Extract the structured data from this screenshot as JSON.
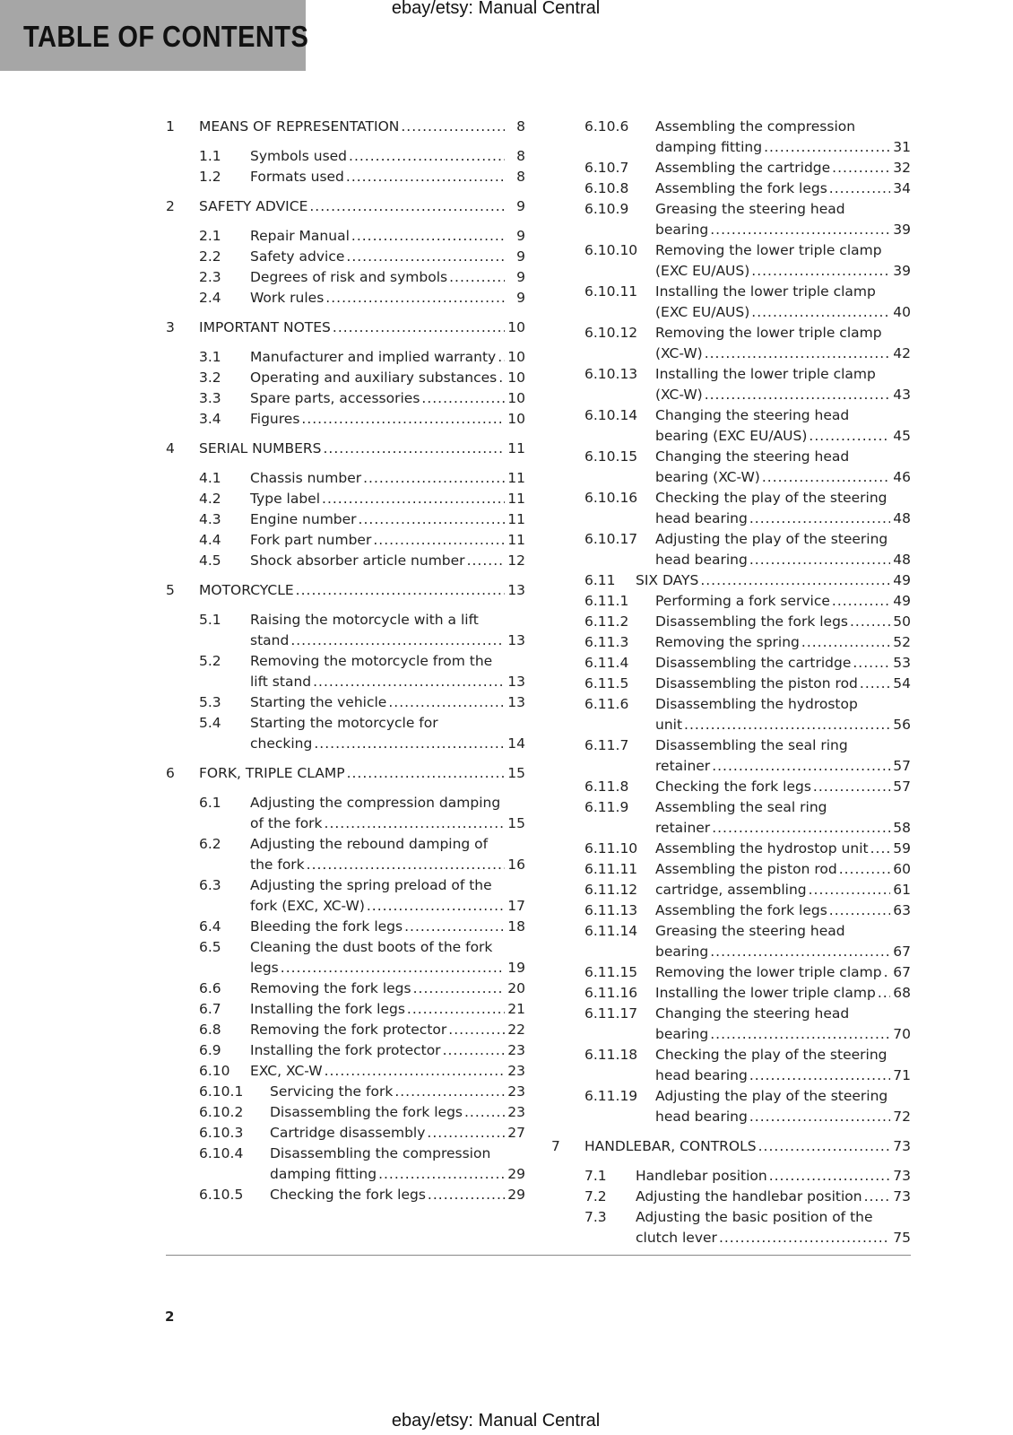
{
  "header": {
    "title": "TABLE OF CONTENTS",
    "watermark_top": "ebay/etsy: Manual Central",
    "watermark_bottom": "ebay/etsy: Manual Central",
    "band_color": "#a6a6a6"
  },
  "footer": {
    "page_number": "2"
  },
  "left": [
    {
      "level": 1,
      "num": "1",
      "lines": [
        "MEANS OF REPRESENTATION"
      ],
      "page": "8"
    },
    {
      "level": 2,
      "num": "1.1",
      "lines": [
        "Symbols used"
      ],
      "page": "8"
    },
    {
      "level": 2,
      "num": "1.2",
      "lines": [
        "Formats used"
      ],
      "page": "8"
    },
    {
      "level": 1,
      "num": "2",
      "lines": [
        "SAFETY ADVICE"
      ],
      "page": "9"
    },
    {
      "level": 2,
      "num": "2.1",
      "lines": [
        "Repair Manual"
      ],
      "page": "9"
    },
    {
      "level": 2,
      "num": "2.2",
      "lines": [
        "Safety advice"
      ],
      "page": "9"
    },
    {
      "level": 2,
      "num": "2.3",
      "lines": [
        "Degrees of risk and symbols"
      ],
      "page": "9"
    },
    {
      "level": 2,
      "num": "2.4",
      "lines": [
        "Work rules"
      ],
      "page": "9"
    },
    {
      "level": 1,
      "num": "3",
      "lines": [
        "IMPORTANT NOTES"
      ],
      "page": "10"
    },
    {
      "level": 2,
      "num": "3.1",
      "lines": [
        "Manufacturer and implied warranty"
      ],
      "page": "10"
    },
    {
      "level": 2,
      "num": "3.2",
      "lines": [
        "Operating and auxiliary substances"
      ],
      "page": "10"
    },
    {
      "level": 2,
      "num": "3.3",
      "lines": [
        "Spare parts, accessories"
      ],
      "page": "10"
    },
    {
      "level": 2,
      "num": "3.4",
      "lines": [
        "Figures"
      ],
      "page": "10"
    },
    {
      "level": 1,
      "num": "4",
      "lines": [
        "SERIAL NUMBERS"
      ],
      "page": "11"
    },
    {
      "level": 2,
      "num": "4.1",
      "lines": [
        "Chassis number"
      ],
      "page": "11"
    },
    {
      "level": 2,
      "num": "4.2",
      "lines": [
        "Type label"
      ],
      "page": "11"
    },
    {
      "level": 2,
      "num": "4.3",
      "lines": [
        "Engine number"
      ],
      "page": "11"
    },
    {
      "level": 2,
      "num": "4.4",
      "lines": [
        "Fork part number"
      ],
      "page": "11"
    },
    {
      "level": 2,
      "num": "4.5",
      "lines": [
        "Shock absorber article number"
      ],
      "page": "12"
    },
    {
      "level": 1,
      "num": "5",
      "lines": [
        "MOTORCYCLE"
      ],
      "page": "13"
    },
    {
      "level": 2,
      "num": "5.1",
      "lines": [
        "Raising the motorcycle with a lift",
        "stand"
      ],
      "page": "13"
    },
    {
      "level": 2,
      "num": "5.2",
      "lines": [
        "Removing the motorcycle from the",
        "lift stand"
      ],
      "page": "13"
    },
    {
      "level": 2,
      "num": "5.3",
      "lines": [
        "Starting the vehicle"
      ],
      "page": "13"
    },
    {
      "level": 2,
      "num": "5.4",
      "lines": [
        "Starting the motorcycle for",
        "checking"
      ],
      "page": "14"
    },
    {
      "level": 1,
      "num": "6",
      "lines": [
        "FORK, TRIPLE CLAMP"
      ],
      "page": "15"
    },
    {
      "level": 2,
      "num": "6.1",
      "lines": [
        "Adjusting the compression damping",
        "of the fork"
      ],
      "page": "15"
    },
    {
      "level": 2,
      "num": "6.2",
      "lines": [
        "Adjusting the rebound damping of",
        "the fork"
      ],
      "page": "16"
    },
    {
      "level": 2,
      "num": "6.3",
      "lines": [
        "Adjusting the spring preload of the",
        "fork (EXC, XC-W)"
      ],
      "page": "17"
    },
    {
      "level": 2,
      "num": "6.4",
      "lines": [
        "Bleeding the fork legs"
      ],
      "page": "18"
    },
    {
      "level": 2,
      "num": "6.5",
      "lines": [
        "Cleaning the dust boots of the fork",
        "legs"
      ],
      "page": "19"
    },
    {
      "level": 2,
      "num": "6.6",
      "lines": [
        "Removing the fork legs"
      ],
      "page": "20"
    },
    {
      "level": 2,
      "num": "6.7",
      "lines": [
        "Installing the fork legs"
      ],
      "page": "21"
    },
    {
      "level": 2,
      "num": "6.8",
      "lines": [
        "Removing the fork protector"
      ],
      "page": "22"
    },
    {
      "level": 2,
      "num": "6.9",
      "lines": [
        "Installing the fork protector"
      ],
      "page": "23"
    },
    {
      "level": 2,
      "num": "6.10",
      "lines": [
        "EXC, XC-W"
      ],
      "page": "23"
    },
    {
      "level": 3,
      "num": "6.10.1",
      "lines": [
        "Servicing the fork"
      ],
      "page": "23"
    },
    {
      "level": 3,
      "num": "6.10.2",
      "lines": [
        "Disassembling the fork legs"
      ],
      "page": "23"
    },
    {
      "level": 3,
      "num": "6.10.3",
      "lines": [
        "Cartridge disassembly"
      ],
      "page": "27"
    },
    {
      "level": 3,
      "num": "6.10.4",
      "lines": [
        "Disassembling the compression",
        "damping fitting"
      ],
      "page": "29"
    },
    {
      "level": 3,
      "num": "6.10.5",
      "lines": [
        "Checking the fork legs"
      ],
      "page": "29"
    }
  ],
  "right": [
    {
      "level": 3,
      "num": "6.10.6",
      "lines": [
        "Assembling the compression",
        "damping fitting"
      ],
      "page": "31"
    },
    {
      "level": 3,
      "num": "6.10.7",
      "lines": [
        "Assembling the cartridge"
      ],
      "page": "32"
    },
    {
      "level": 3,
      "num": "6.10.8",
      "lines": [
        "Assembling the fork legs"
      ],
      "page": "34"
    },
    {
      "level": 3,
      "num": "6.10.9",
      "lines": [
        "Greasing the steering head",
        "bearing"
      ],
      "page": "39"
    },
    {
      "level": 3,
      "num": "6.10.10",
      "lines": [
        "Removing the lower triple clamp",
        "(EXC EU/AUS)"
      ],
      "page": "39"
    },
    {
      "level": 3,
      "num": "6.10.11",
      "lines": [
        "Installing the lower triple clamp",
        "(EXC EU/AUS)"
      ],
      "page": "40"
    },
    {
      "level": 3,
      "num": "6.10.12",
      "lines": [
        "Removing the lower triple clamp",
        "(XC-W)"
      ],
      "page": "42"
    },
    {
      "level": 3,
      "num": "6.10.13",
      "lines": [
        "Installing the lower triple clamp",
        "(XC-W)"
      ],
      "page": "43"
    },
    {
      "level": 3,
      "num": "6.10.14",
      "lines": [
        "Changing the steering head",
        "bearing (EXC EU/AUS)"
      ],
      "page": "45"
    },
    {
      "level": 3,
      "num": "6.10.15",
      "lines": [
        "Changing the steering head",
        "bearing (XC-W)"
      ],
      "page": "46"
    },
    {
      "level": 3,
      "num": "6.10.16",
      "lines": [
        "Checking the play of the steering",
        "head bearing"
      ],
      "page": "48"
    },
    {
      "level": 3,
      "num": "6.10.17",
      "lines": [
        "Adjusting the play of the steering",
        "head bearing"
      ],
      "page": "48"
    },
    {
      "level": 2,
      "num": "6.11",
      "lines": [
        "SIX DAYS"
      ],
      "page": "49"
    },
    {
      "level": 3,
      "num": "6.11.1",
      "lines": [
        "Performing a fork service"
      ],
      "page": "49"
    },
    {
      "level": 3,
      "num": "6.11.2",
      "lines": [
        "Disassembling the fork legs"
      ],
      "page": "50"
    },
    {
      "level": 3,
      "num": "6.11.3",
      "lines": [
        "Removing the spring"
      ],
      "page": "52"
    },
    {
      "level": 3,
      "num": "6.11.4",
      "lines": [
        "Disassembling the cartridge"
      ],
      "page": "53"
    },
    {
      "level": 3,
      "num": "6.11.5",
      "lines": [
        "Disassembling the piston rod"
      ],
      "page": "54"
    },
    {
      "level": 3,
      "num": "6.11.6",
      "lines": [
        "Disassembling the hydrostop",
        "unit"
      ],
      "page": "56"
    },
    {
      "level": 3,
      "num": "6.11.7",
      "lines": [
        "Disassembling the seal ring",
        "retainer"
      ],
      "page": "57"
    },
    {
      "level": 3,
      "num": "6.11.8",
      "lines": [
        "Checking the fork legs"
      ],
      "page": "57"
    },
    {
      "level": 3,
      "num": "6.11.9",
      "lines": [
        "Assembling the seal ring",
        "retainer"
      ],
      "page": "58"
    },
    {
      "level": 3,
      "num": "6.11.10",
      "lines": [
        "Assembling the hydrostop unit"
      ],
      "page": "59"
    },
    {
      "level": 3,
      "num": "6.11.11",
      "lines": [
        "Assembling the piston rod"
      ],
      "page": "60"
    },
    {
      "level": 3,
      "num": "6.11.12",
      "lines": [
        "cartridge, assembling"
      ],
      "page": "61"
    },
    {
      "level": 3,
      "num": "6.11.13",
      "lines": [
        "Assembling the fork legs"
      ],
      "page": "63"
    },
    {
      "level": 3,
      "num": "6.11.14",
      "lines": [
        "Greasing the steering head",
        "bearing"
      ],
      "page": "67"
    },
    {
      "level": 3,
      "num": "6.11.15",
      "lines": [
        "Removing the lower triple clamp"
      ],
      "page": "67"
    },
    {
      "level": 3,
      "num": "6.11.16",
      "lines": [
        "Installing the lower triple clamp"
      ],
      "page": "68"
    },
    {
      "level": 3,
      "num": "6.11.17",
      "lines": [
        "Changing the steering head",
        "bearing"
      ],
      "page": "70"
    },
    {
      "level": 3,
      "num": "6.11.18",
      "lines": [
        "Checking the play of the steering",
        "head bearing"
      ],
      "page": "71"
    },
    {
      "level": 3,
      "num": "6.11.19",
      "lines": [
        "Adjusting the play of the steering",
        "head bearing"
      ],
      "page": "72"
    },
    {
      "level": 1,
      "num": "7",
      "lines": [
        "HANDLEBAR, CONTROLS"
      ],
      "page": "73"
    },
    {
      "level": 2,
      "num": "7.1",
      "lines": [
        "Handlebar position"
      ],
      "page": "73"
    },
    {
      "level": 2,
      "num": "7.2",
      "lines": [
        "Adjusting the handlebar position"
      ],
      "page": "73"
    },
    {
      "level": 2,
      "num": "7.3",
      "lines": [
        "Adjusting the basic position of the",
        "clutch lever"
      ],
      "page": "75"
    }
  ]
}
